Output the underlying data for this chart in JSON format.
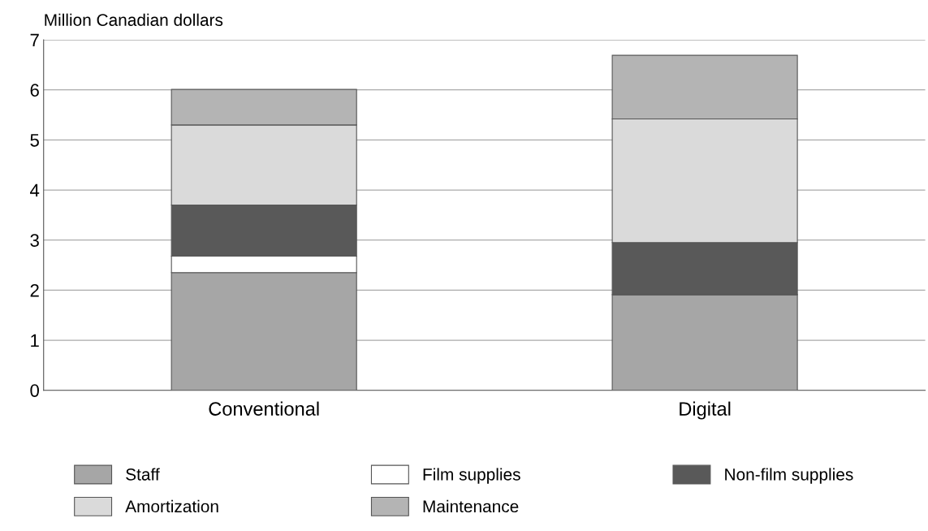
{
  "chart_data": {
    "type": "bar",
    "stacked": true,
    "ylabel": "Million Canadian dollars",
    "categories": [
      "Conventional",
      "Digital"
    ],
    "series": [
      {
        "name": "Staff",
        "color": "#a6a6a6",
        "values": [
          2.35,
          1.91
        ]
      },
      {
        "name": "Film supplies",
        "color": "#ffffff",
        "values": [
          0.33,
          0
        ]
      },
      {
        "name": "Non-film supplies",
        "color": "#595959",
        "values": [
          1.02,
          1.04
        ]
      },
      {
        "name": "Amortization",
        "color": "#dadada",
        "values": [
          1.6,
          2.47
        ]
      },
      {
        "name": "Maintenance",
        "color": "#b4b4b4",
        "values": [
          0.71,
          1.27
        ]
      }
    ],
    "ylim": [
      0,
      7
    ],
    "yticks": [
      0,
      1,
      2,
      3,
      4,
      5,
      6,
      7
    ],
    "grid": "y",
    "legend": "bottom"
  }
}
